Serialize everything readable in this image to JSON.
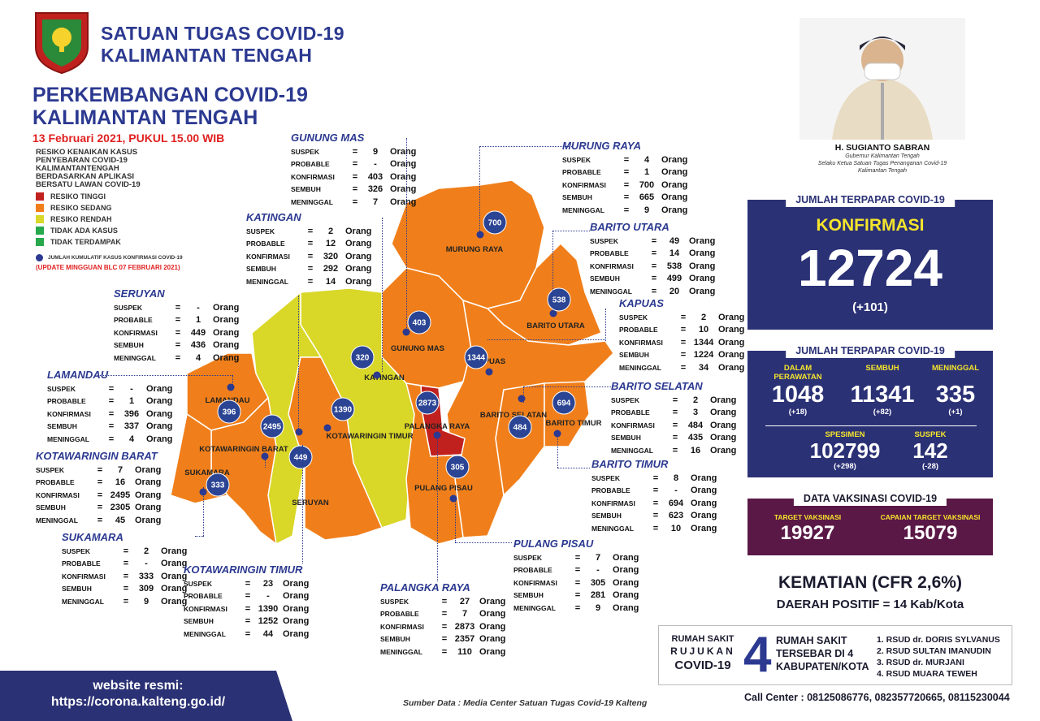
{
  "header": {
    "org_line1": "SATUAN TUGAS COVID-19",
    "org_line2": "KALIMANTAN TENGAH",
    "title_line1": "PERKEMBANGAN COVID-19",
    "title_line2": "KALIMANTAN TENGAH",
    "date": "13 Februari 2021, PUKUL 15.00 WIB"
  },
  "legend": {
    "title": [
      "RESIKO KENAIKAN KASUS",
      "PENYEBARAN COVID-19",
      "KALIMANTANTENGAH",
      "BERDASARKAN APLIKASI",
      "BERSATU LAWAN COVID-19"
    ],
    "items": [
      {
        "label": "RESIKO TINGGI",
        "color": "#c0211e"
      },
      {
        "label": "RESIKO SEDANG",
        "color": "#f07f1b"
      },
      {
        "label": "RESIKO RENDAH",
        "color": "#d9d727"
      },
      {
        "label": "TIDAK ADA KASUS",
        "color": "#27a84a"
      },
      {
        "label": "TIDAK TERDAMPAK",
        "color": "#27a84a"
      }
    ],
    "dot_label": "JUMLAH KUMULATIF KASUS KONFIRMASI COVID-19",
    "update": "(UPDATE MINGGUAN BLC 07 FEBRUARI 2021)"
  },
  "stat_labels": {
    "suspek": "SUSPEK",
    "probable": "PROBABLE",
    "konfirmasi": "KONFIRMASI",
    "sembuh": "SEMBUH",
    "meninggal": "MENINGGAL",
    "eq": "=",
    "unit": "Orang"
  },
  "regions": {
    "gunung_mas": {
      "name": "GUNUNG MAS",
      "suspek": "9",
      "probable": "-",
      "konfirmasi": "403",
      "sembuh": "326",
      "meninggal": "7"
    },
    "katingan": {
      "name": "KATINGAN",
      "suspek": "2",
      "probable": "12",
      "konfirmasi": "320",
      "sembuh": "292",
      "meninggal": "14"
    },
    "seruyan": {
      "name": "SERUYAN",
      "suspek": "-",
      "probable": "1",
      "konfirmasi": "449",
      "sembuh": "436",
      "meninggal": "4"
    },
    "lamandau": {
      "name": "LAMANDAU",
      "suspek": "-",
      "probable": "1",
      "konfirmasi": "396",
      "sembuh": "337",
      "meninggal": "4"
    },
    "kotawaringin_barat": {
      "name": "KOTAWARINGIN BARAT",
      "suspek": "7",
      "probable": "16",
      "konfirmasi": "2495",
      "sembuh": "2305",
      "meninggal": "45"
    },
    "sukamara": {
      "name": "SUKAMARA",
      "suspek": "2",
      "probable": "-",
      "konfirmasi": "333",
      "sembuh": "309",
      "meninggal": "9"
    },
    "kotawaringin_timur": {
      "name": "KOTAWARINGIN TIMUR",
      "suspek": "23",
      "probable": "-",
      "konfirmasi": "1390",
      "sembuh": "1252",
      "meninggal": "44"
    },
    "palangka_raya": {
      "name": "PALANGKA RAYA",
      "suspek": "27",
      "probable": "7",
      "konfirmasi": "2873",
      "sembuh": "2357",
      "meninggal": "110"
    },
    "pulang_pisau": {
      "name": "PULANG PISAU",
      "suspek": "7",
      "probable": "-",
      "konfirmasi": "305",
      "sembuh": "281",
      "meninggal": "9"
    },
    "murung_raya": {
      "name": "MURUNG RAYA",
      "suspek": "4",
      "probable": "1",
      "konfirmasi": "700",
      "sembuh": "665",
      "meninggal": "9"
    },
    "barito_utara": {
      "name": "BARITO UTARA",
      "suspek": "49",
      "probable": "14",
      "konfirmasi": "538",
      "sembuh": "499",
      "meninggal": "20"
    },
    "kapuas": {
      "name": "KAPUAS",
      "suspek": "2",
      "probable": "10",
      "konfirmasi": "1344",
      "sembuh": "1224",
      "meninggal": "34"
    },
    "barito_selatan": {
      "name": "BARITO SELATAN",
      "suspek": "2",
      "probable": "3",
      "konfirmasi": "484",
      "sembuh": "435",
      "meninggal": "16"
    },
    "barito_timur": {
      "name": "BARITO TIMUR",
      "suspek": "8",
      "probable": "-",
      "konfirmasi": "694",
      "sembuh": "623",
      "meninggal": "10"
    }
  },
  "map_labels": {
    "murung_raya": "MURUNG RAYA",
    "barito_utara": "BARITO UTARA",
    "gunung_mas": "GUNUNG MAS",
    "kapuas": "KAPUAS",
    "katingan": "KATINGAN",
    "lamandau": "LAMANDAU",
    "kotawaringin_barat": "KOTAWARINGIN BARAT",
    "kotawaringin_timur": "KOTAWARINGIN TIMUR",
    "palangka_raya": "PALANGKA RAYA",
    "barito_selatan": "BARITO SELATAN",
    "barito_timur": "BARITO TIMUR",
    "sukamara": "SUKAMARA",
    "seruyan": "SERUYAN",
    "pulang_pisau": "PULANG PISAU"
  },
  "colors": {
    "primary": "#2b3175",
    "accent_yellow": "#f5e52c",
    "vax_panel": "#5a1846",
    "risk_high": "#c0211e",
    "risk_medium": "#f07f1b",
    "risk_low": "#d9d727"
  },
  "governor": {
    "name": "H. SUGIANTO SABRAN",
    "role_line1": "Gubernur Kalimantan Tengah",
    "role_line2": "Selaku Ketua Satuan Tugas Penanganan Covid-19",
    "role_line3": "Kalimantan Tengah"
  },
  "totals": {
    "panel1_title": "JUMLAH TERPAPAR COVID-19",
    "konfirmasi_label": "KONFIRMASI",
    "konfirmasi": "12724",
    "konfirmasi_delta": "(+101)",
    "panel2_title": "JUMLAH TERPAPAR COVID-19",
    "dalam_perawatan_label1": "DALAM",
    "dalam_perawatan_label2": "PERAWATAN",
    "dalam_perawatan": "1048",
    "dalam_perawatan_delta": "(+18)",
    "sembuh_label": "SEMBUH",
    "sembuh": "11341",
    "sembuh_delta": "(+82)",
    "meninggal_label": "MENINGGAL",
    "meninggal": "335",
    "meninggal_delta": "(+1)",
    "spesimen_label": "SPESIMEN",
    "spesimen": "102799",
    "spesimen_delta": "(+298)",
    "suspek_label": "SUSPEK",
    "suspek": "142",
    "suspek_delta": "(-28)"
  },
  "vaksinasi": {
    "title": "DATA VAKSINASI COVID-19",
    "target_label": "TARGET VAKSINASI",
    "target": "19927",
    "capaian_label": "CAPAIAN TARGET VAKSINASI",
    "capaian": "15079"
  },
  "summary": {
    "cfr": "KEMATIAN (CFR 2,6%)",
    "daerah": "DAERAH POSITIF = 14 Kab/Kota"
  },
  "rumah_sakit": {
    "left1": "RUMAH SAKIT",
    "left2": "RUJUKAN",
    "left3": "COVID-19",
    "count": "4",
    "mid1": "RUMAH SAKIT",
    "mid2": "TERSEBAR DI 4",
    "mid3": "KABUPATEN/KOTA",
    "list": [
      "1. RSUD dr. DORIS SYLVANUS",
      "2. RSUD SULTAN IMANUDIN",
      "3. RSUD dr. MURJANI",
      "4. RSUD MUARA TEWEH"
    ]
  },
  "footer": {
    "web_label": "website resmi:",
    "web_url": "https://corona.kalteng.go.id/",
    "source": "Sumber Data : Media Center Satuan Tugas Covid-19 Kalteng",
    "call_center": "Call Center     : 08125086776, 082357720665, 08115230044"
  }
}
